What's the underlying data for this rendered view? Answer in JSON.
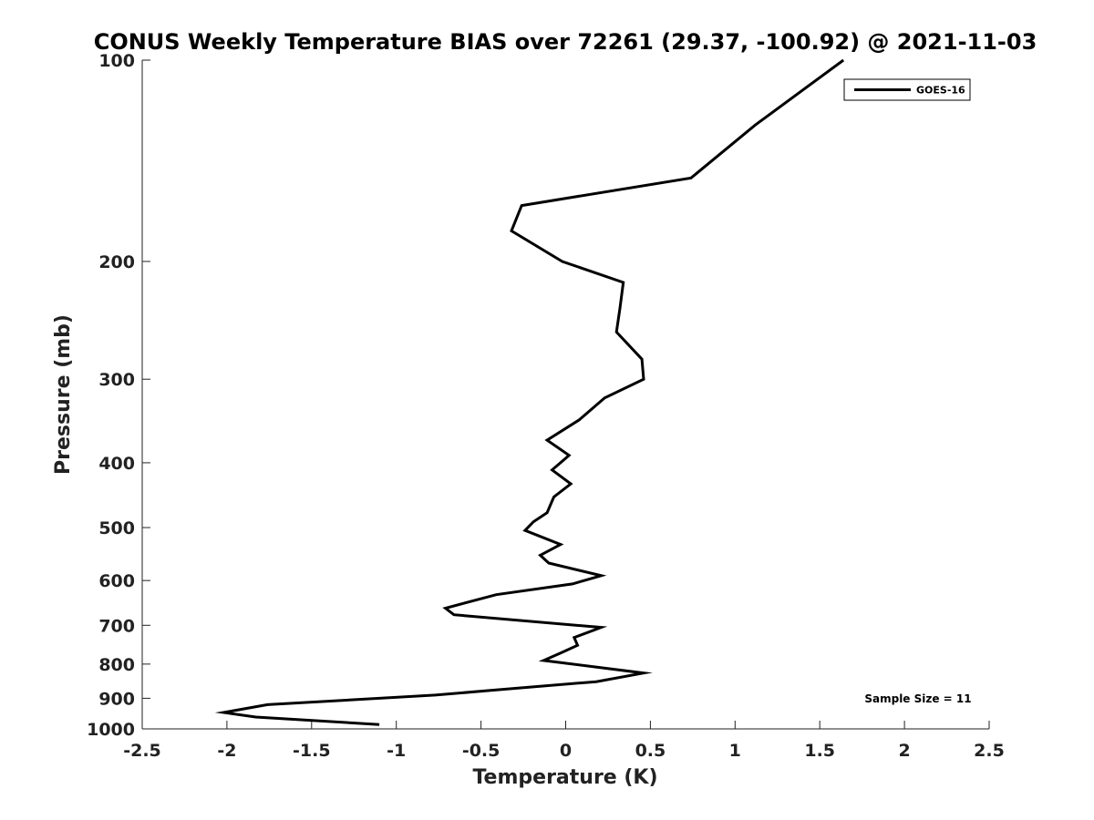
{
  "chart_data": {
    "type": "line",
    "title": "CONUS Weekly Temperature BIAS over 72261 (29.37, -100.92) @ 2021-11-03",
    "xlabel": "Temperature (K)",
    "ylabel": "Pressure (mb)",
    "xlim": [
      -2.5,
      2.5
    ],
    "ylim": [
      100,
      1000
    ],
    "y_scale": "log",
    "y_inverted": true,
    "x_ticks": [
      -2.5,
      -2,
      -1.5,
      -1,
      -0.5,
      0,
      0.5,
      1,
      1.5,
      2,
      2.5
    ],
    "x_tick_labels": [
      "-2.5",
      "-2",
      "-1.5",
      "-1",
      "-0.5",
      "0",
      "0.5",
      "1",
      "1.5",
      "2",
      "2.5"
    ],
    "y_ticks": [
      100,
      200,
      300,
      400,
      500,
      600,
      700,
      800,
      900,
      1000
    ],
    "y_tick_labels": [
      "100",
      "200",
      "300",
      "400",
      "500",
      "600",
      "700",
      "800",
      "900",
      "1000"
    ],
    "grid": false,
    "legend_position": "top-right",
    "annotation": "Sample Size = 11",
    "series": [
      {
        "name": "GOES-16",
        "color": "#000000",
        "x": [
          1.64,
          1.12,
          0.74,
          -0.26,
          -0.32,
          -0.02,
          0.34,
          0.32,
          0.3,
          0.45,
          0.46,
          0.23,
          0.08,
          -0.11,
          0.02,
          -0.08,
          0.03,
          -0.07,
          -0.11,
          -0.19,
          -0.24,
          -0.03,
          -0.15,
          -0.1,
          0.21,
          0.04,
          -0.41,
          -0.71,
          -0.66,
          0.21,
          0.05,
          0.07,
          -0.03,
          -0.13,
          0.46,
          0.18,
          -0.42,
          -0.77,
          -1.76,
          -2.02,
          -1.83,
          -1.1
        ],
        "y": [
          100,
          125,
          150,
          165,
          180,
          200,
          215,
          235,
          255,
          280,
          300,
          320,
          345,
          370,
          390,
          410,
          430,
          450,
          475,
          490,
          505,
          530,
          550,
          565,
          590,
          607,
          630,
          660,
          675,
          705,
          730,
          750,
          770,
          790,
          825,
          850,
          875,
          890,
          920,
          945,
          960,
          985
        ]
      }
    ]
  }
}
